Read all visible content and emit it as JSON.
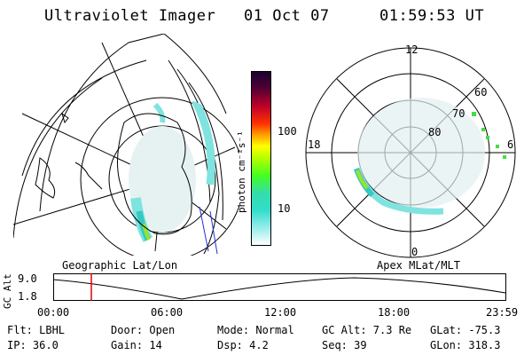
{
  "header": {
    "instrument": "Ultraviolet Imager",
    "date": "01 Oct 07",
    "time": "01:59:53 UT"
  },
  "colorbar": {
    "label": "photon cm⁻²s⁻¹",
    "ticks": [
      "100",
      "10"
    ]
  },
  "polar_plot": {
    "clock_labels": {
      "top": "12",
      "left": "18",
      "right": "6",
      "bottom": "0"
    },
    "lat_labels": [
      "60",
      "70",
      "80"
    ]
  },
  "map_labels": {
    "left": "Geographic Lat/Lon",
    "right": "Apex MLat/MLT"
  },
  "altitude_plot": {
    "axis_label": "GC Alt",
    "y_ticks": [
      "9.0",
      "1.8"
    ],
    "x_ticks": [
      "00:00",
      "06:00",
      "12:00",
      "18:00",
      "23:59"
    ],
    "current_time_marker": "01:59:53"
  },
  "status": {
    "row1": {
      "filter": "Flt: LBHL",
      "door": "Door: Open",
      "mode": "Mode: Normal",
      "gc_alt": "GC Alt: 7.3 Re",
      "glat": "GLat: -75.3"
    },
    "row2": {
      "ip": "IP: 36.0",
      "gain": "Gain: 14",
      "dsp": "Dsp:    4.2",
      "seq": "Seq: 39",
      "glon": "GLon: 318.3"
    }
  },
  "colors": {
    "aurora_low": "#7fe3df",
    "aurora_mid": "#34c9c2",
    "aurora_high": "#9be22a",
    "marker": "#e00000"
  }
}
